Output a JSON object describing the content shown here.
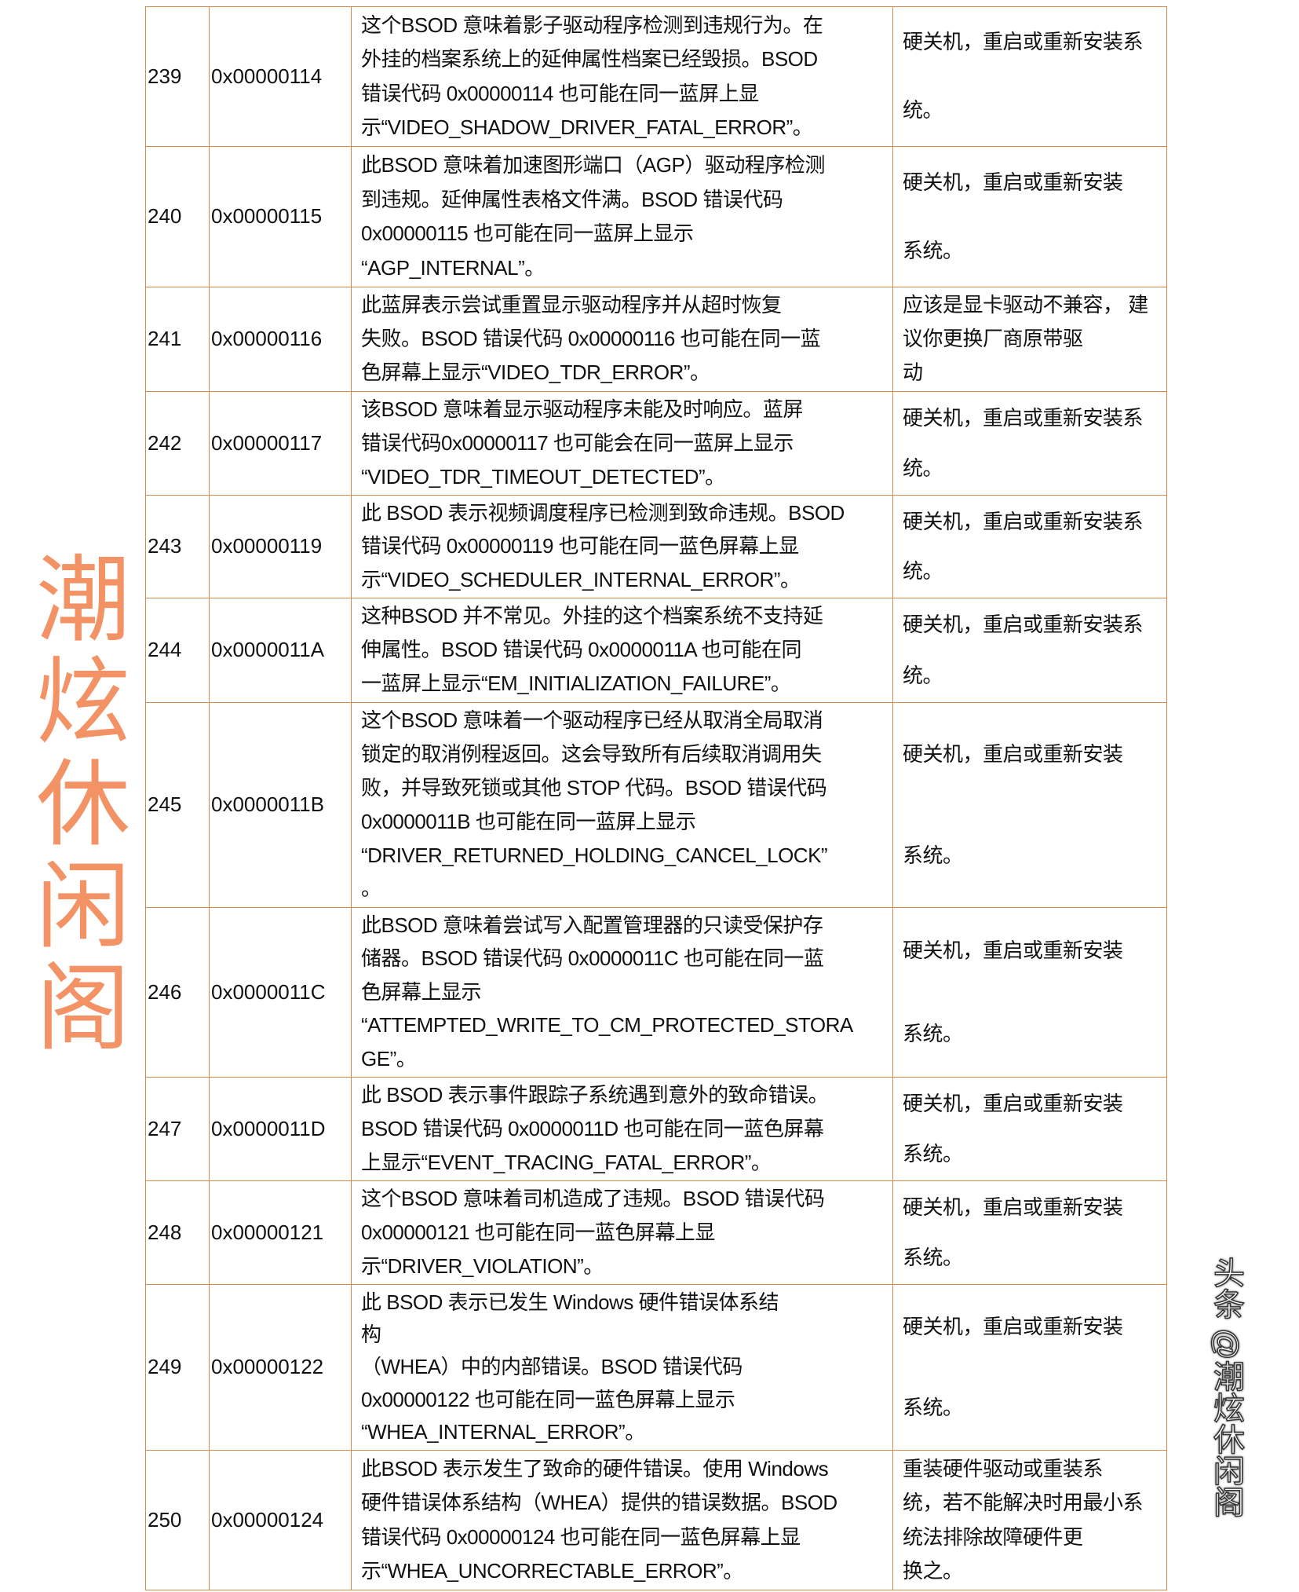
{
  "rows": [
    {
      "num": "239",
      "code": "0x00000114",
      "desc": [
        "这个BSOD 意味着影子驱动程序检测到违规行为。在",
        "外挂的档案系统上的延伸属性档案已经毁损。BSOD",
        "错误代码 0x00000114 也可能在同一蓝屏上显",
        "示“VIDEO_SHADOW_DRIVER_FATAL_ERROR”。"
      ],
      "sol": [
        "硬关机，重启或重新安装系",
        "统。"
      ],
      "h": 178
    },
    {
      "num": "240",
      "code": "0x00000115",
      "desc": [
        "此BSOD 意味着加速图形端口（AGP）驱动程序检测",
        "到违规。延伸属性表格文件满。BSOD 错误代码",
        "0x00000115 也可能在同一蓝屏上显示",
        "“AGP_INTERNAL”。"
      ],
      "sol": [
        "硬关机，重启或重新安装",
        "系统。"
      ],
      "h": 179
    },
    {
      "num": "241",
      "code": "0x00000116",
      "desc": [
        "此蓝屏表示尝试重置显示驱动程序并从超时恢复",
        "失败。BSOD 错误代码 0x00000116 也可能在同一蓝",
        "色屏幕上显示“VIDEO_TDR_ERROR”。"
      ],
      "sol": [
        "应该是显卡驱动不兼容， 建",
        "议你更换厂商原带驱",
        "动"
      ],
      "h": 133
    },
    {
      "num": "242",
      "code": "0x00000117",
      "desc": [
        "该BSOD 意味着显示驱动程序未能及时响应。蓝屏",
        "错误代码0x00000117 也可能会在同一蓝屏上显示",
        "“VIDEO_TDR_TIMEOUT_DETECTED”。"
      ],
      "sol": [
        "硬关机，重启或重新安装系",
        "统。"
      ],
      "h": 132
    },
    {
      "num": "243",
      "code": "0x00000119",
      "desc": [
        "此 BSOD 表示视频调度程序已检测到致命违规。BSOD",
        "错误代码 0x00000119 也可能在同一蓝色屏幕上显",
        "示“VIDEO_SCHEDULER_INTERNAL_ERROR”。"
      ],
      "sol": [
        "硬关机，重启或重新安装系",
        "统。"
      ],
      "h": 131
    },
    {
      "num": "244",
      "code": "0x0000011A",
      "desc": [
        "这种BSOD 并不常见。外挂的这个档案系统不支持延",
        "伸属性。BSOD 错误代码 0x0000011A 也可能在同",
        "一蓝屏上显示“EM_INITIALIZATION_FAILURE”。"
      ],
      "sol": [
        "硬关机，重启或重新安装系",
        "统。"
      ],
      "h": 133
    },
    {
      "num": "245",
      "code": "0x0000011B",
      "desc": [
        "这个BSOD 意味着一个驱动程序已经从取消全局取消",
        "锁定的取消例程返回。这会导致所有后续取消调用失",
        "败，并导致死锁或其他 STOP 代码。BSOD 错误代码",
        "0x0000011B 也可能在同一蓝屏上显示",
        "“DRIVER_RETURNED_HOLDING_CANCEL_LOCK”",
        "。"
      ],
      "sol": [
        "硬关机，重启或重新安装",
        "系统。"
      ],
      "h": 261
    },
    {
      "num": "246",
      "code": "0x0000011C",
      "desc": [
        "此BSOD 意味着尝试写入配置管理器的只读受保护存",
        "储器。BSOD 错误代码 0x0000011C 也可能在同一蓝",
        "色屏幕上显示",
        "“ATTEMPTED_WRITE_TO_CM_PROTECTED_STORA",
        "GE”。"
      ],
      "sol": [
        "硬关机，重启或重新安装",
        "系统。"
      ],
      "h": 216
    },
    {
      "num": "247",
      "code": "0x0000011D",
      "desc": [
        "此 BSOD 表示事件跟踪子系统遇到意外的致命错误。",
        "BSOD 错误代码 0x0000011D 也可能在同一蓝色屏幕",
        "上显示“EVENT_TRACING_FATAL_ERROR”。"
      ],
      "sol": [
        "硬关机，重启或重新安装",
        "系统。"
      ],
      "h": 132
    },
    {
      "num": "248",
      "code": "0x00000121",
      "desc": [
        "这个BSOD 意味着司机造成了违规。BSOD 错误代码",
        "0x00000121 也可能在同一蓝色屏幕上显",
        "示“DRIVER_VIOLATION”。"
      ],
      "sol": [
        "硬关机，重启或重新安装",
        "系统。"
      ],
      "h": 132
    },
    {
      "num": "249",
      "code": "0x00000122",
      "desc": [
        "此 BSOD 表示已发生 Windows 硬件错误体系结",
        "构",
        "（WHEA）中的内部错误。BSOD 错误代码",
        "0x00000122 也可能在同一蓝色屏幕上显示",
        "“WHEA_INTERNAL_ERROR”。"
      ],
      "sol": [
        "硬关机，重启或重新安装",
        "系统。"
      ],
      "h": 211
    },
    {
      "num": "250",
      "code": "0x00000124",
      "desc": [
        "此BSOD 表示发生了致命的硬件错误。使用 Windows",
        "硬件错误体系结构（WHEA）提供的错误数据。BSOD",
        "错误代码 0x00000124 也可能在同一蓝色屏幕上显",
        "示“WHEA_UNCORRECTABLE_ERROR”。"
      ],
      "sol": [
        "重装硬件驱动或重装系",
        "统，若不能解决时用最小系",
        "统法排除故障硬件更",
        "换之。"
      ],
      "h": 178
    }
  ],
  "watermark": "潮炫休闲阁",
  "brand": "头条 @潮炫休闲阁",
  "colors": {
    "border": "#d08a4a",
    "watermark": "#ee6e32",
    "underline": "#1f9d55"
  }
}
